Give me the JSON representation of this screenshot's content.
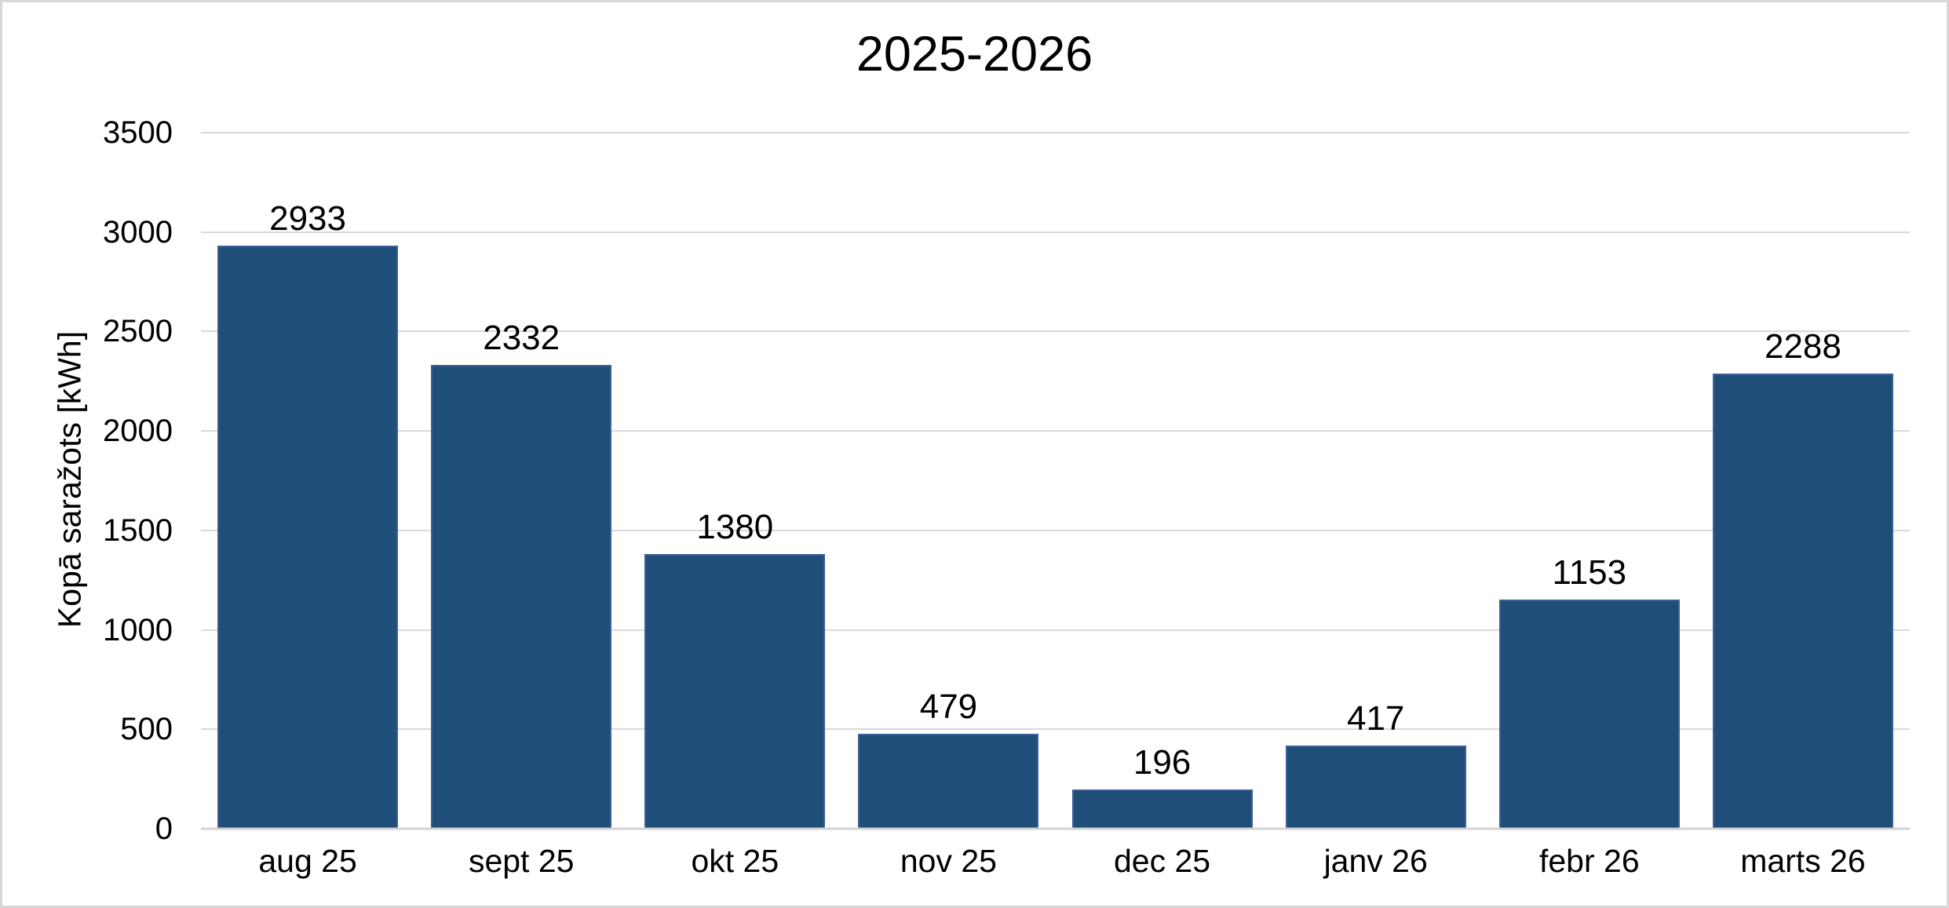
{
  "chart_data": {
    "type": "bar",
    "title": "2025-2026",
    "xlabel": "",
    "ylabel": "Kopā saražots [kWh]",
    "categories": [
      "aug 25",
      "sept 25",
      "okt 25",
      "nov 25",
      "dec 25",
      "janv 26",
      "febr 26",
      "marts 26"
    ],
    "values": [
      2933,
      2332,
      1380,
      479,
      196,
      417,
      1153,
      2288
    ],
    "data_labels": [
      "2933",
      "2332",
      "1380",
      "479",
      "196",
      "417",
      "1153",
      "2288"
    ],
    "ylim": [
      0,
      3500
    ],
    "yticks": [
      0,
      500,
      1000,
      1500,
      2000,
      2500,
      3000,
      3500
    ],
    "grid": "horizontal",
    "legend_position": "none",
    "colors": {
      "bar_fill": "#1F4E79",
      "bar_border": "#3A6096",
      "gridline": "#D9D9D9",
      "axis_line": "#D2D2D2",
      "text": "#000000",
      "background": "#FFFFFF",
      "frame_border": "#D7D7D7"
    }
  }
}
